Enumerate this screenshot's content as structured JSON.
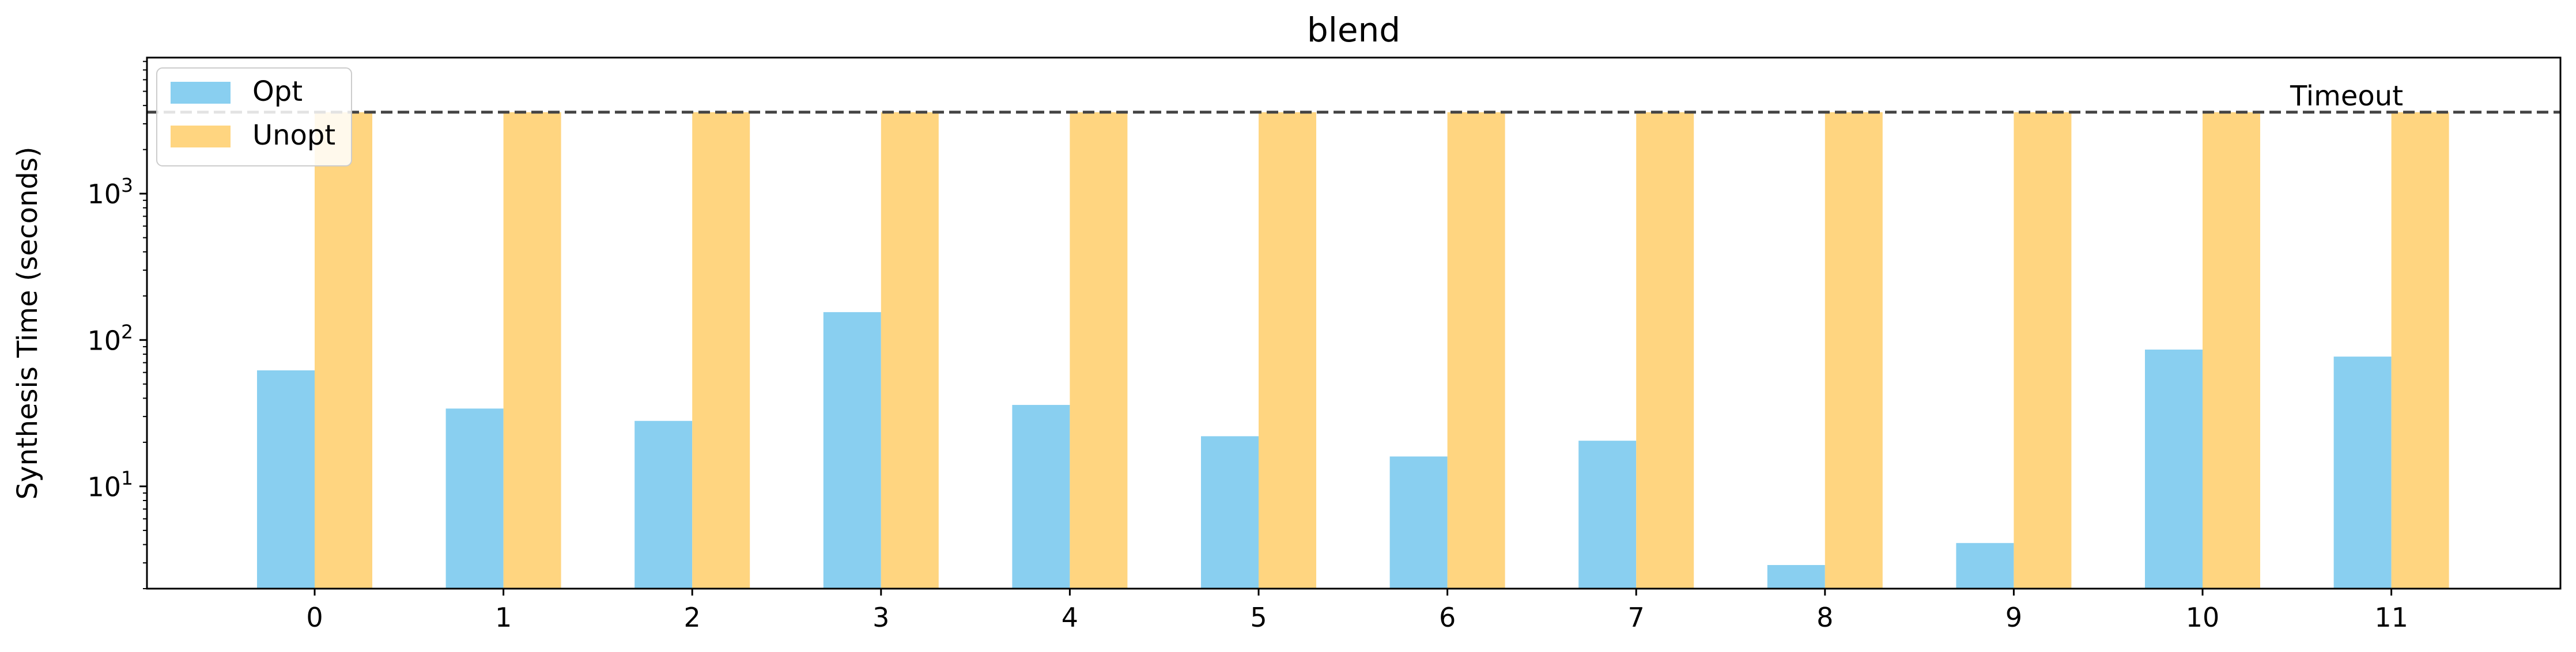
{
  "chart_data": {
    "type": "bar",
    "title": "blend",
    "xlabel": "",
    "ylabel": "Synthesis Time (seconds)",
    "yscale": "log",
    "ylim": [
      2,
      8500
    ],
    "categories": [
      "0",
      "1",
      "2",
      "3",
      "4",
      "5",
      "6",
      "7",
      "8",
      "9",
      "10",
      "11"
    ],
    "series": [
      {
        "name": "Opt",
        "color": "#89CFF0",
        "values": [
          62,
          34,
          28,
          155,
          36,
          22,
          16,
          20.5,
          2.9,
          4.1,
          86,
          77
        ]
      },
      {
        "name": "Unopt",
        "color": "#FFD580",
        "values": [
          3600,
          3600,
          3600,
          3600,
          3600,
          3600,
          3600,
          3600,
          3600,
          3600,
          3600,
          3600
        ]
      }
    ],
    "yticks": [
      {
        "value": 10,
        "base": "10",
        "exp": "1"
      },
      {
        "value": 100,
        "base": "10",
        "exp": "2"
      },
      {
        "value": 1000,
        "base": "10",
        "exp": "3"
      }
    ],
    "reference_line": {
      "value": 3600,
      "label": "Timeout",
      "style": "dashed",
      "color": "#444444"
    },
    "legend": {
      "position": "top-left"
    },
    "grid": false
  }
}
